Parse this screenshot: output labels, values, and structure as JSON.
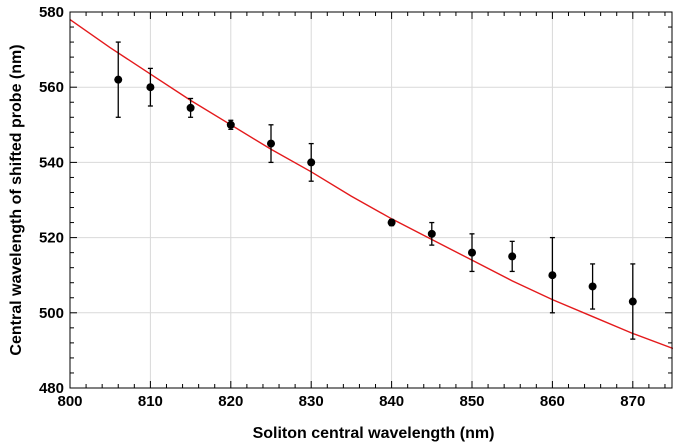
{
  "chart_data": {
    "type": "scatter",
    "title": "",
    "xlabel": "Soliton central wavelength (nm)",
    "ylabel": "Central wavelength of shifted probe (nm)",
    "xlim": [
      800,
      875
    ],
    "ylim": [
      480,
      580
    ],
    "x_ticks": [
      "800",
      "810",
      "820",
      "830",
      "840",
      "850",
      "860",
      "870"
    ],
    "y_ticks": [
      "480",
      "500",
      "520",
      "540",
      "560",
      "580"
    ],
    "grid": true,
    "legend": "none",
    "series": [
      {
        "kind": "points-with-error-bars",
        "color": "#000000",
        "points": [
          {
            "x": 806,
            "y": 562,
            "err_low": 10,
            "err_high": 10
          },
          {
            "x": 810,
            "y": 560,
            "err_low": 5,
            "err_high": 5
          },
          {
            "x": 815,
            "y": 554.5,
            "err_low": 2.5,
            "err_high": 2.5
          },
          {
            "x": 820,
            "y": 550,
            "err_low": 1.2,
            "err_high": 1.2
          },
          {
            "x": 825,
            "y": 545,
            "err_low": 5,
            "err_high": 5
          },
          {
            "x": 830,
            "y": 540,
            "err_low": 5,
            "err_high": 5
          },
          {
            "x": 840,
            "y": 524,
            "err_low": 0.8,
            "err_high": 0.8
          },
          {
            "x": 845,
            "y": 521,
            "err_low": 3,
            "err_high": 3
          },
          {
            "x": 850,
            "y": 516,
            "err_low": 5,
            "err_high": 5
          },
          {
            "x": 855,
            "y": 515,
            "err_low": 4,
            "err_high": 4
          },
          {
            "x": 860,
            "y": 510,
            "err_low": 10,
            "err_high": 10
          },
          {
            "x": 865,
            "y": 507,
            "err_low": 6,
            "err_high": 6
          },
          {
            "x": 870,
            "y": 503,
            "err_low": 10,
            "err_high": 10
          }
        ]
      },
      {
        "kind": "curve",
        "color": "#e41a1c",
        "x": [
          800,
          805,
          810,
          815,
          820,
          825,
          830,
          835,
          840,
          845,
          850,
          855,
          860,
          865,
          870,
          875
        ],
        "y": [
          578,
          570.5,
          563.5,
          556.5,
          550,
          543.5,
          537.5,
          531,
          525,
          519.5,
          514,
          508.5,
          503.5,
          499,
          494.5,
          490.5
        ]
      }
    ]
  }
}
